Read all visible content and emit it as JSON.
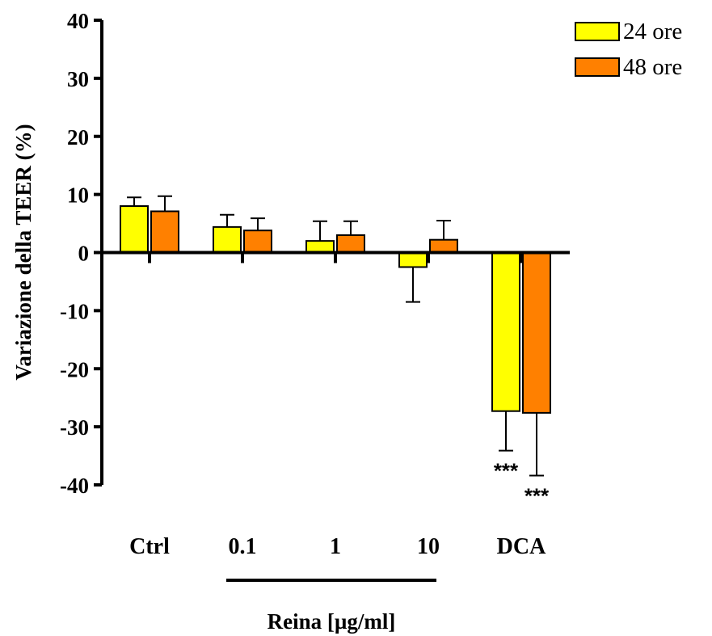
{
  "chart_data": {
    "type": "bar",
    "categories": [
      "Ctrl",
      "0.1",
      "1",
      "10",
      "DCA"
    ],
    "series": [
      {
        "name": "24 ore",
        "color": "#ffff00",
        "values": [
          8.0,
          4.4,
          2.0,
          -2.5,
          -27.3
        ],
        "errors": [
          1.5,
          2.1,
          3.4,
          6.0,
          6.8
        ],
        "error_direction": [
          "up",
          "up",
          "up",
          "down",
          "down"
        ]
      },
      {
        "name": "48 ore",
        "color": "#ff8000",
        "values": [
          7.1,
          3.8,
          3.0,
          2.2,
          -27.6
        ],
        "errors": [
          2.6,
          2.1,
          2.4,
          3.3,
          10.8
        ],
        "error_direction": [
          "up",
          "up",
          "up",
          "up",
          "down"
        ]
      }
    ],
    "ylabel": "Variazione della TEER (%)",
    "group_label": "Reina [µg/ml]",
    "group_label_categories": [
      "0.1",
      "1",
      "10"
    ],
    "ylim": [
      -40,
      40
    ],
    "yticks": [
      "40",
      "30",
      "20",
      "10",
      "0",
      "-10",
      "-20",
      "-30",
      "-40"
    ],
    "annotations": [
      {
        "category": "DCA",
        "series": "24 ore",
        "text": "***"
      },
      {
        "category": "DCA",
        "series": "48 ore",
        "text": "***"
      }
    ],
    "legend_position": "top-right",
    "grid": false
  }
}
